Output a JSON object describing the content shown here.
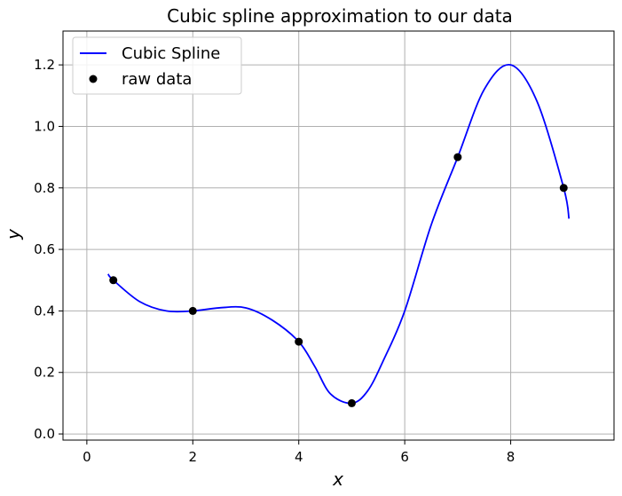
{
  "chart_data": {
    "type": "line",
    "title": "Cubic spline approximation to our data",
    "xlabel": "x",
    "ylabel": "y",
    "xlim": [
      -0.45,
      9.95
    ],
    "ylim": [
      -0.02,
      1.31
    ],
    "xticks": [
      0,
      2,
      4,
      6,
      8
    ],
    "yticks": [
      0.0,
      0.2,
      0.4,
      0.6,
      0.8,
      1.0,
      1.2
    ],
    "grid": true,
    "legend_position": "top-left",
    "series": [
      {
        "name": "Cubic Spline",
        "style": "line",
        "color": "#0000ff",
        "x": [
          0.4,
          0.5,
          1.0,
          1.5,
          2.0,
          2.5,
          3.0,
          3.5,
          4.0,
          4.3,
          4.6,
          5.0,
          5.3,
          5.6,
          6.0,
          6.5,
          7.0,
          7.5,
          8.0,
          8.5,
          9.0,
          9.1
        ],
        "y": [
          0.52,
          0.5,
          0.43,
          0.4,
          0.4,
          0.41,
          0.41,
          0.37,
          0.3,
          0.22,
          0.13,
          0.1,
          0.14,
          0.24,
          0.4,
          0.68,
          0.9,
          1.12,
          1.2,
          1.08,
          0.8,
          0.7
        ]
      },
      {
        "name": "raw data",
        "style": "marker",
        "color": "#000000",
        "x": [
          0.5,
          2,
          4,
          5,
          7,
          9
        ],
        "y": [
          0.5,
          0.4,
          0.3,
          0.1,
          0.9,
          0.8
        ]
      }
    ]
  }
}
